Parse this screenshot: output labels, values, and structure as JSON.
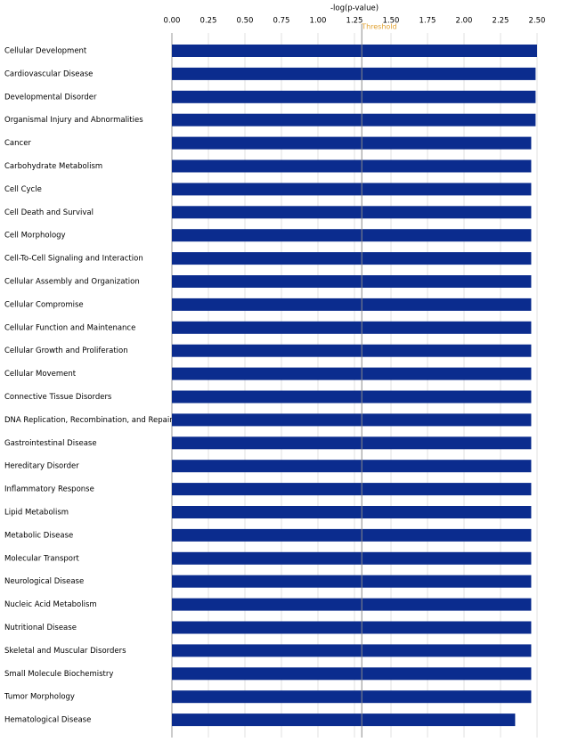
{
  "chart_data": {
    "type": "hbar",
    "x_label": "-log(p-value)",
    "threshold": 1.3,
    "threshold_label": "Threshold",
    "color": "#0b2c8e",
    "grid": true,
    "xlim": [
      0,
      2.5
    ],
    "xticks": [
      {
        "value": 0,
        "label": "0.00"
      },
      {
        "value": 0.25,
        "label": "0.25"
      },
      {
        "value": 0.5,
        "label": "0.50"
      },
      {
        "value": 0.75,
        "label": "0.75"
      },
      {
        "value": 1,
        "label": "1.00"
      },
      {
        "value": 1.25,
        "label": "1.25"
      },
      {
        "value": 1.5,
        "label": "1.50"
      },
      {
        "value": 1.75,
        "label": "1.75"
      },
      {
        "value": 2,
        "label": "2.00"
      },
      {
        "value": 2.25,
        "label": "2.25"
      },
      {
        "value": 2.5,
        "label": "2.50"
      }
    ],
    "categories": [
      "Cellular Development",
      "Cardiovascular Disease",
      "Developmental Disorder",
      "Organismal Injury and Abnormalities",
      "Cancer",
      "Carbohydrate Metabolism",
      "Cell Cycle",
      "Cell Death and Survival",
      "Cell Morphology",
      "Cell-To-Cell Signaling and Interaction",
      "Cellular Assembly and Organization",
      "Cellular Compromise",
      "Cellular Function and Maintenance",
      "Cellular Growth and Proliferation",
      "Cellular Movement",
      "Connective Tissue Disorders",
      "DNA Replication, Recombination, and Repair",
      "Gastrointestinal Disease",
      "Hereditary Disorder",
      "Inflammatory Response",
      "Lipid Metabolism",
      "Metabolic Disease",
      "Molecular Transport",
      "Neurological Disease",
      "Nucleic Acid Metabolism",
      "Nutritional Disease",
      "Skeletal and Muscular Disorders",
      "Small Molecule Biochemistry",
      "Tumor Morphology",
      "Hematological Disease"
    ],
    "values": [
      2.5,
      2.49,
      2.49,
      2.49,
      2.46,
      2.46,
      2.46,
      2.46,
      2.46,
      2.46,
      2.46,
      2.46,
      2.46,
      2.46,
      2.46,
      2.46,
      2.46,
      2.46,
      2.46,
      2.46,
      2.46,
      2.46,
      2.46,
      2.46,
      2.46,
      2.46,
      2.46,
      2.46,
      2.46,
      2.35
    ]
  }
}
